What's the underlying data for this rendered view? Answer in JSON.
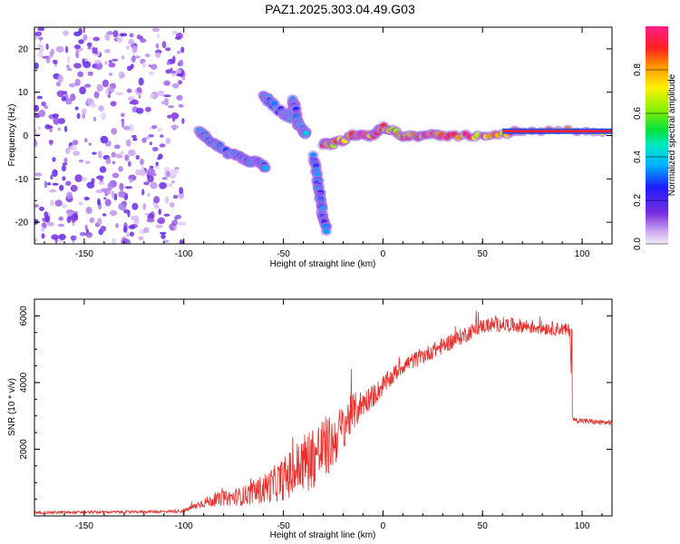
{
  "title": "PAZ1.2025.303.04.49.G03",
  "colors": {
    "snr_line": "#e8312d",
    "axis": "#000000"
  },
  "chart_data": [
    {
      "type": "heatmap",
      "name": "spectrogram",
      "xlabel": "Height of straight line (km)",
      "ylabel": "Frequency (Hz)",
      "xlim": [
        -175,
        115
      ],
      "ylim": [
        -25,
        25
      ],
      "xticks": [
        -150,
        -100,
        -50,
        0,
        50,
        100
      ],
      "yticks": [
        -20,
        -10,
        0,
        10,
        20
      ],
      "description_features": [
        {
          "label": "noise",
          "x_range": [
            -175,
            -100
          ],
          "y_range": [
            -25,
            25
          ],
          "amplitude": 0.05
        },
        {
          "label": "upper branch",
          "points": [
            [
              -60,
              9
            ],
            [
              -57,
              8
            ],
            [
              -50,
              5
            ],
            [
              -46,
              4
            ],
            [
              -45,
              8
            ],
            [
              -44,
              6
            ],
            [
              -43,
              3
            ],
            [
              -40,
              1
            ],
            [
              -38,
              0
            ]
          ],
          "amplitude": 0.35
        },
        {
          "label": "lower branch",
          "points": [
            [
              -92,
              1
            ],
            [
              -88,
              -1
            ],
            [
              -84,
              -2
            ],
            [
              -78,
              -4
            ],
            [
              -72,
              -5
            ],
            [
              -68,
              -6
            ],
            [
              -63,
              -6
            ],
            [
              -58,
              -8
            ]
          ],
          "amplitude": 0.35
        },
        {
          "label": "steep branch",
          "points": [
            [
              -35,
              -5
            ],
            [
              -33,
              -10
            ],
            [
              -32,
              -13
            ],
            [
              -31,
              -16
            ],
            [
              -30,
              -19
            ],
            [
              -28,
              -22
            ]
          ],
          "amplitude": 0.3
        },
        {
          "label": "main tone",
          "points": [
            [
              -30,
              -2
            ],
            [
              -25,
              -2
            ],
            [
              -15,
              0
            ],
            [
              -5,
              0
            ],
            [
              0,
              2
            ],
            [
              10,
              0
            ],
            [
              20,
              0
            ],
            [
              30,
              0
            ],
            [
              50,
              0
            ],
            [
              70,
              1
            ],
            [
              115,
              1
            ]
          ],
          "amplitude": 0.9
        }
      ]
    },
    {
      "type": "colorbar",
      "label": "Normalized spectral amplitude",
      "range": [
        0.0,
        1.0
      ],
      "ticks": [
        "0.0",
        "0.2",
        "0.4",
        "0.6",
        "0.8"
      ]
    },
    {
      "type": "line",
      "name": "snr",
      "xlabel": "Height of straight line (km)",
      "ylabel": "SNR (10 * v/v)",
      "xlim": [
        -175,
        115
      ],
      "ylim": [
        0,
        6500
      ],
      "xticks": [
        -150,
        -100,
        -50,
        0,
        50,
        100
      ],
      "yticks": [
        2000,
        4000,
        6000
      ],
      "series": [
        {
          "name": "SNR",
          "x": [
            -175,
            -150,
            -125,
            -110,
            -100,
            -90,
            -80,
            -70,
            -60,
            -50,
            -45,
            -40,
            -35,
            -30,
            -25,
            -20,
            -15,
            -10,
            -5,
            0,
            10,
            20,
            30,
            40,
            50,
            60,
            70,
            80,
            90,
            94,
            95,
            100,
            110,
            115
          ],
          "values": [
            100,
            110,
            120,
            130,
            150,
            400,
            520,
            600,
            800,
            1100,
            1300,
            1600,
            1800,
            2000,
            2200,
            2700,
            3100,
            3400,
            3600,
            3900,
            4500,
            4800,
            5100,
            5400,
            5700,
            5750,
            5700,
            5650,
            5600,
            5550,
            2900,
            2850,
            2800,
            2800
          ],
          "noise_amplitude": [
            40,
            40,
            40,
            40,
            60,
            150,
            220,
            300,
            450,
            650,
            800,
            900,
            1000,
            1000,
            800,
            700,
            600,
            400,
            350,
            300,
            250,
            250,
            250,
            250,
            220,
            220,
            220,
            220,
            200,
            200,
            80,
            80,
            80,
            80
          ]
        }
      ]
    }
  ]
}
